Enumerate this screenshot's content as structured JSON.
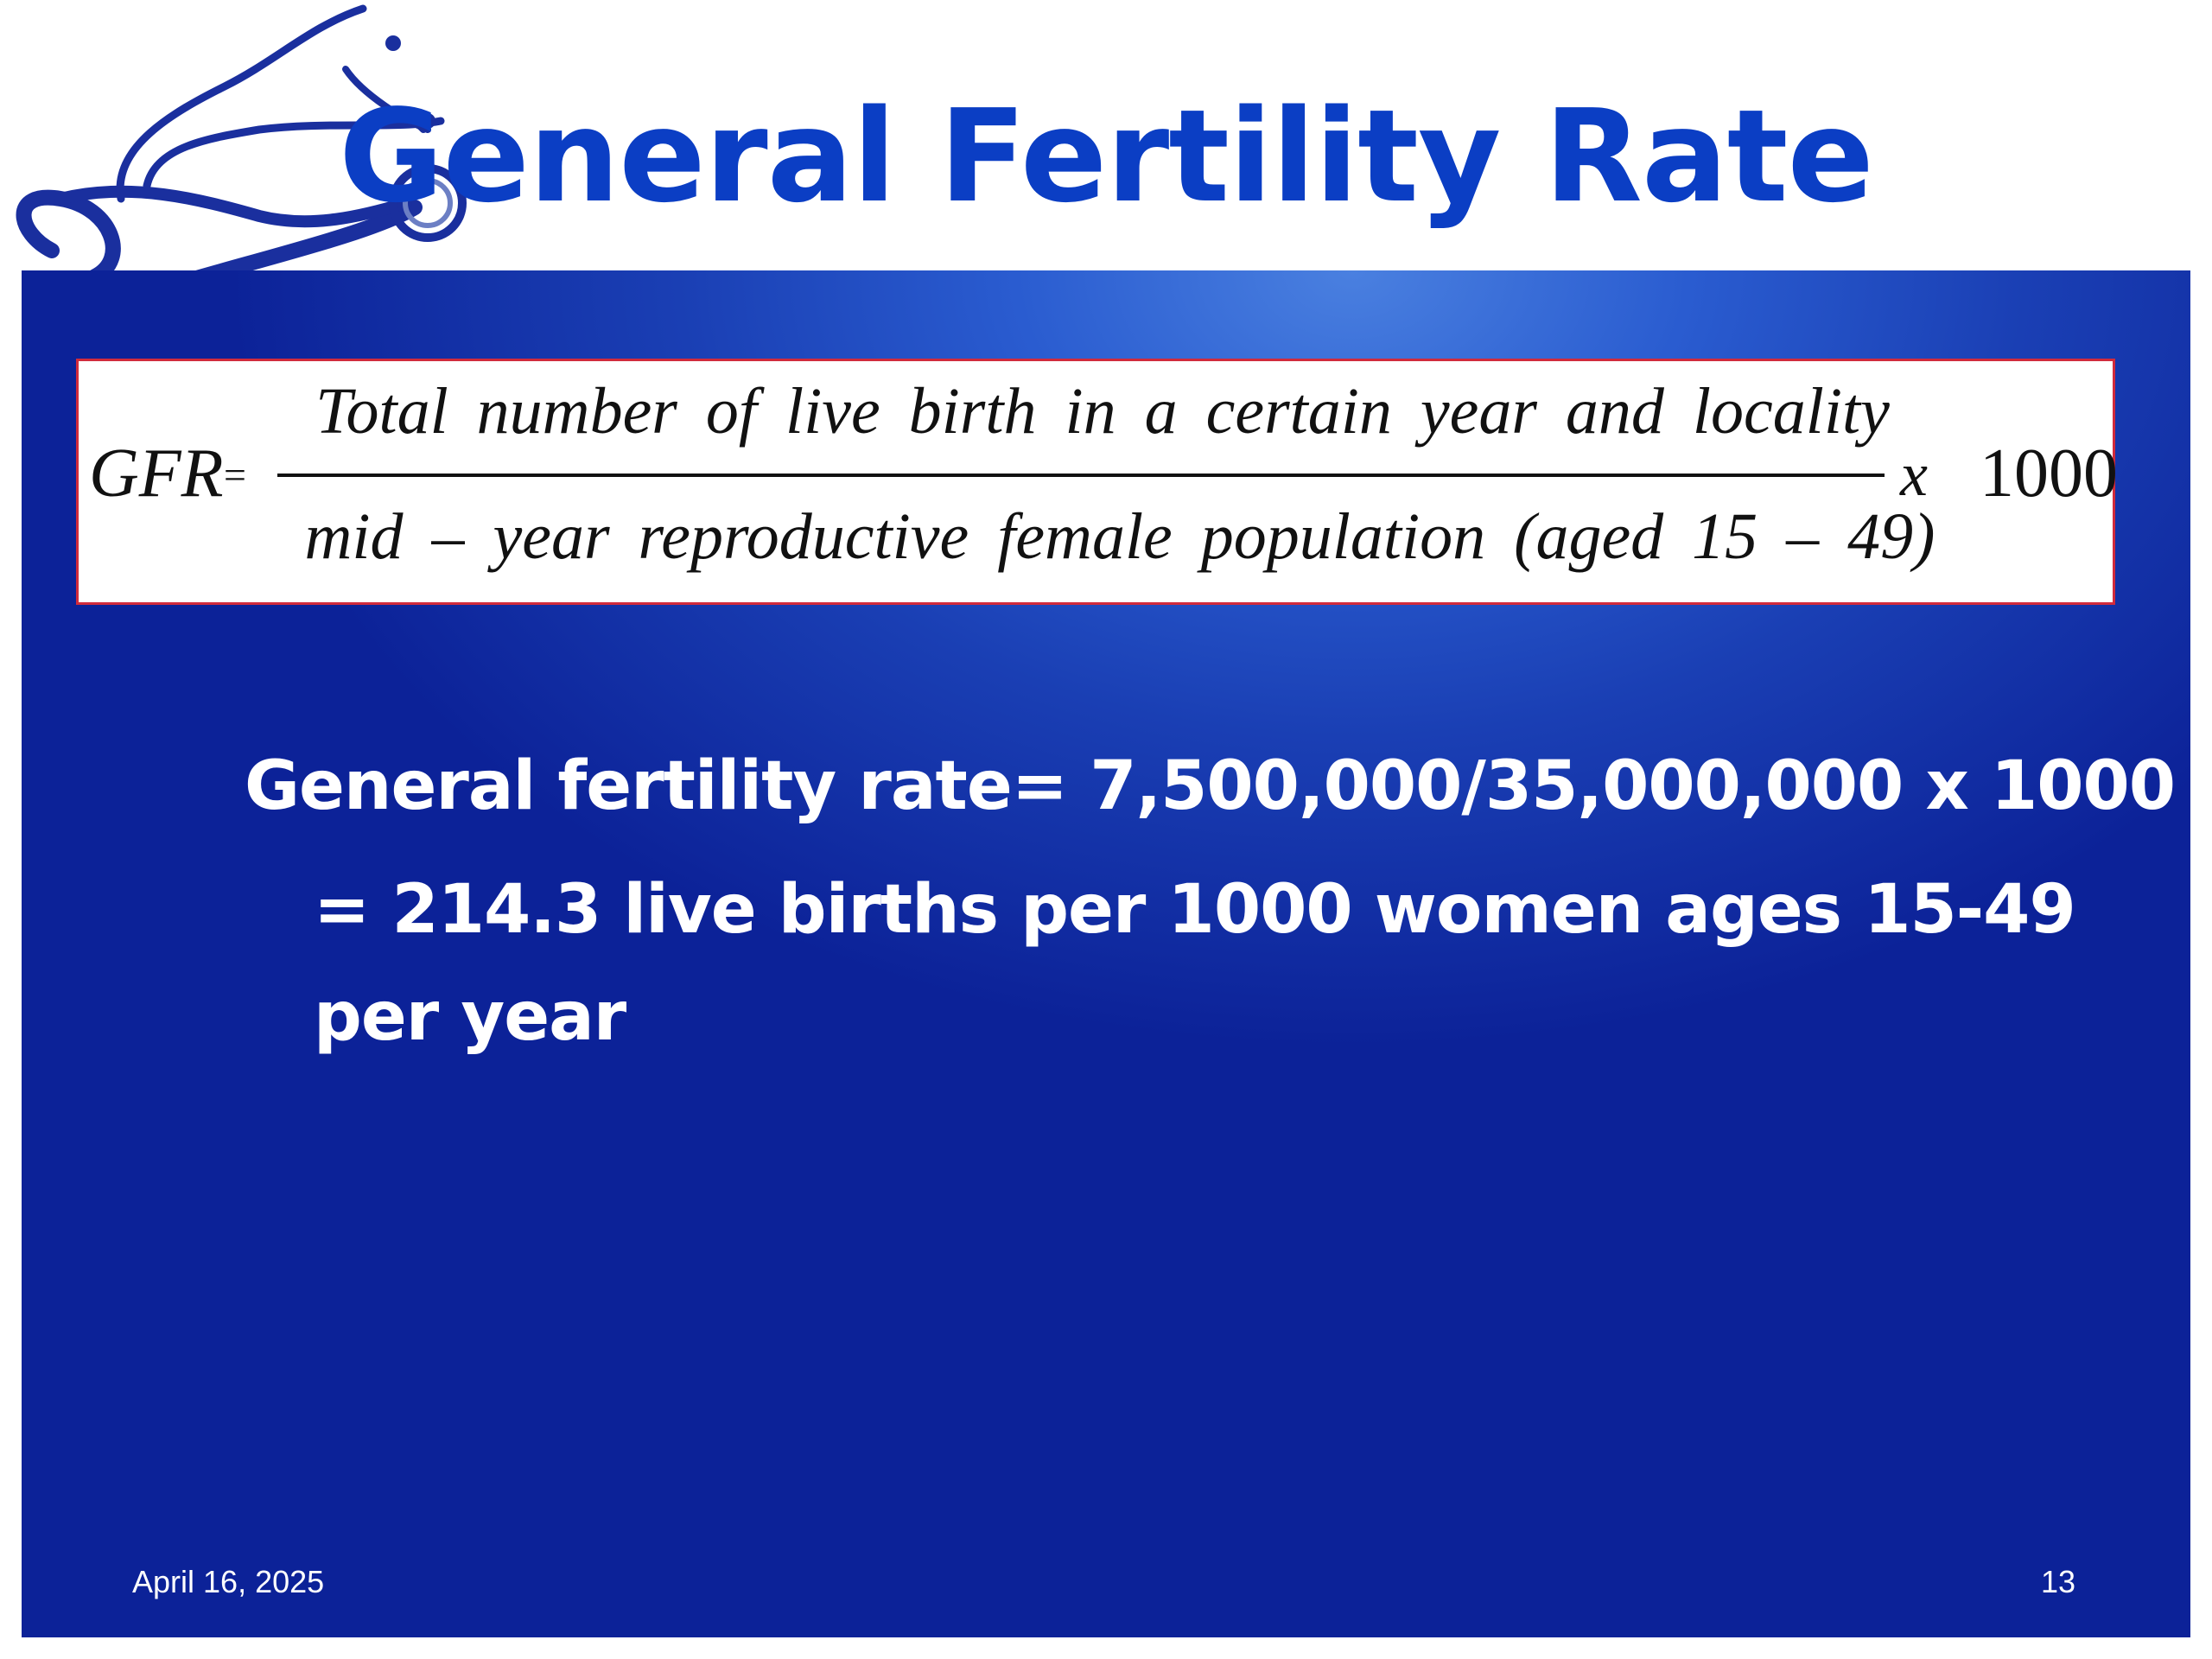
{
  "slide": {
    "title": "General Fertility Rate",
    "formula": {
      "lhs": "GFR",
      "equals": "=",
      "numerator": "Total number of live birth in a certain year and locality",
      "denominator": "mid – year reproductive female population (aged 15 – 49)",
      "times": "x",
      "factor": "1000"
    },
    "calculation_line": "General fertility rate= 7,500,000/35,000,000 x 1000",
    "result_line_1": "= 214.3 live births per 1000 women ages 15-49",
    "result_line_2": "per year",
    "footer": {
      "date": "April 16, 2025",
      "page_number": "13"
    },
    "decoration": {
      "image_icon": "stethoscope-icon",
      "colors": {
        "title": "#0b3ec4",
        "panel_dark": "#0c2298",
        "panel_light": "#4a80e0",
        "formula_border": "#d12b3c",
        "stethoscope": "#1a2f9e"
      }
    }
  }
}
